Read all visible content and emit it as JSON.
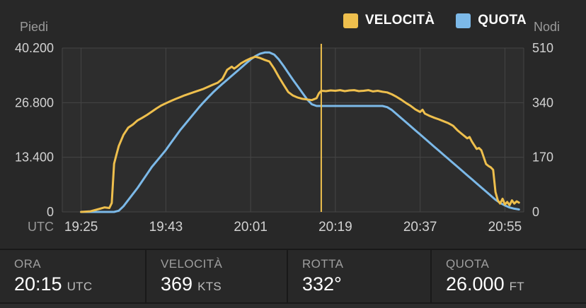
{
  "legend": {
    "items": [
      {
        "label": "VELOCITÀ",
        "color": "#eebf4d"
      },
      {
        "label": "QUOTA",
        "color": "#7cb9e8"
      }
    ]
  },
  "chart": {
    "left_axis": {
      "title": "Piedi",
      "max": 40200,
      "ticks": [
        40200,
        26800,
        13400,
        0
      ],
      "tick_labels": [
        "40.200",
        "26.800",
        "13.400",
        "0"
      ]
    },
    "right_axis": {
      "title": "Nodi",
      "max": 510,
      "ticks": [
        510,
        340,
        170,
        0
      ],
      "tick_labels": [
        "510",
        "340",
        "170",
        "0"
      ]
    },
    "x_axis": {
      "title": "UTC",
      "tick_labels": [
        "19:25",
        "19:43",
        "20:01",
        "20:19",
        "20:37",
        "20:55"
      ],
      "tick_minutes": [
        0,
        18,
        36,
        54,
        72,
        90
      ],
      "range_minutes": [
        -4,
        94
      ]
    },
    "cursor": {
      "minute": 51,
      "time": "20:15",
      "color": "#eebf4d"
    },
    "colors": {
      "grid": "#454545",
      "plot_bg": "#2d2d2d",
      "tick_text": "#d2d2d2",
      "axis_title_text": "#9a9a9a"
    }
  },
  "chart_data": {
    "type": "line",
    "title": "Flight altitude and speed profile",
    "x_unit": "minutes after 19:25 UTC",
    "x_tick_times": [
      "19:25",
      "19:43",
      "20:01",
      "20:19",
      "20:37",
      "20:55"
    ],
    "left_axis": {
      "label": "Piedi",
      "range": [
        0,
        40200
      ]
    },
    "right_axis": {
      "label": "Nodi",
      "range": [
        0,
        510
      ]
    },
    "cursor_readout": {
      "time_utc": "20:15",
      "speed_kts": 369,
      "track_deg": 332,
      "altitude_ft": 26000
    },
    "series": [
      {
        "name": "VELOCITÀ",
        "unit": "kts",
        "axis": "right",
        "color": "#eebf4d",
        "points": [
          [
            0,
            0
          ],
          [
            2,
            2
          ],
          [
            4,
            10
          ],
          [
            5,
            14
          ],
          [
            6,
            12
          ],
          [
            6.5,
            28
          ],
          [
            7,
            150
          ],
          [
            7.5,
            178
          ],
          [
            8,
            205
          ],
          [
            9,
            240
          ],
          [
            10,
            262
          ],
          [
            11,
            272
          ],
          [
            12,
            285
          ],
          [
            13,
            293
          ],
          [
            14,
            302
          ],
          [
            15,
            312
          ],
          [
            16,
            322
          ],
          [
            17,
            331
          ],
          [
            18,
            338
          ],
          [
            19,
            345
          ],
          [
            20,
            351
          ],
          [
            21,
            357
          ],
          [
            22,
            363
          ],
          [
            24,
            373
          ],
          [
            26,
            383
          ],
          [
            28,
            396
          ],
          [
            29,
            402
          ],
          [
            30,
            414
          ],
          [
            31,
            442
          ],
          [
            32,
            452
          ],
          [
            32.5,
            446
          ],
          [
            33,
            451
          ],
          [
            34,
            463
          ],
          [
            35,
            471
          ],
          [
            36,
            478
          ],
          [
            37,
            483
          ],
          [
            38,
            479
          ],
          [
            39,
            473
          ],
          [
            40,
            468
          ],
          [
            41,
            446
          ],
          [
            42,
            420
          ],
          [
            43,
            396
          ],
          [
            44,
            373
          ],
          [
            45,
            362
          ],
          [
            46,
            356
          ],
          [
            47,
            352
          ],
          [
            48,
            350
          ],
          [
            49,
            348
          ],
          [
            50,
            354
          ],
          [
            50.5,
            369
          ],
          [
            51,
            377
          ],
          [
            52,
            376
          ],
          [
            53,
            378
          ],
          [
            54,
            377
          ],
          [
            55,
            379
          ],
          [
            56,
            376
          ],
          [
            57,
            378
          ],
          [
            58,
            379
          ],
          [
            59,
            376
          ],
          [
            60,
            377
          ],
          [
            61,
            379
          ],
          [
            62,
            375
          ],
          [
            63,
            377
          ],
          [
            64,
            374
          ],
          [
            65,
            372
          ],
          [
            66,
            366
          ],
          [
            67,
            358
          ],
          [
            68,
            349
          ],
          [
            69,
            339
          ],
          [
            70,
            330
          ],
          [
            71,
            319
          ],
          [
            72,
            311
          ],
          [
            72.5,
            318
          ],
          [
            73,
            306
          ],
          [
            74,
            299
          ],
          [
            75,
            293
          ],
          [
            76,
            288
          ],
          [
            77,
            282
          ],
          [
            78,
            276
          ],
          [
            79,
            268
          ],
          [
            80,
            253
          ],
          [
            81,
            241
          ],
          [
            82,
            229
          ],
          [
            82.5,
            233
          ],
          [
            83,
            219
          ],
          [
            84,
            196
          ],
          [
            84.5,
            199
          ],
          [
            85,
            192
          ],
          [
            86,
            149
          ],
          [
            86.5,
            143
          ],
          [
            87,
            139
          ],
          [
            87.5,
            131
          ],
          [
            88,
            62
          ],
          [
            88.5,
            36
          ],
          [
            89,
            26
          ],
          [
            89.5,
            41
          ],
          [
            90,
            23
          ],
          [
            90.5,
            31
          ],
          [
            91,
            21
          ],
          [
            91.5,
            36
          ],
          [
            92,
            26
          ],
          [
            92.5,
            33
          ],
          [
            93,
            29
          ]
        ]
      },
      {
        "name": "QUOTA",
        "unit": "ft",
        "axis": "left",
        "color": "#7cb9e8",
        "points": [
          [
            0,
            0
          ],
          [
            7,
            0
          ],
          [
            8,
            300
          ],
          [
            9,
            1400
          ],
          [
            10,
            2900
          ],
          [
            11,
            4400
          ],
          [
            12,
            5900
          ],
          [
            13,
            7600
          ],
          [
            14,
            9300
          ],
          [
            15,
            11000
          ],
          [
            16,
            12400
          ],
          [
            17,
            13800
          ],
          [
            18,
            15200
          ],
          [
            19,
            16800
          ],
          [
            20,
            18400
          ],
          [
            21,
            20000
          ],
          [
            22,
            21400
          ],
          [
            23,
            22800
          ],
          [
            24,
            24200
          ],
          [
            25,
            25600
          ],
          [
            26,
            26900
          ],
          [
            27,
            28100
          ],
          [
            28,
            29300
          ],
          [
            29,
            30400
          ],
          [
            30,
            31400
          ],
          [
            31,
            32400
          ],
          [
            32,
            33400
          ],
          [
            33,
            34400
          ],
          [
            34,
            35400
          ],
          [
            35,
            36400
          ],
          [
            36,
            37400
          ],
          [
            37,
            38200
          ],
          [
            38,
            38800
          ],
          [
            39,
            39100
          ],
          [
            40,
            39100
          ],
          [
            41,
            38600
          ],
          [
            42,
            37400
          ],
          [
            43,
            35800
          ],
          [
            44,
            34100
          ],
          [
            45,
            32400
          ],
          [
            46,
            30800
          ],
          [
            47,
            29200
          ],
          [
            48,
            27600
          ],
          [
            49,
            26400
          ],
          [
            50,
            26000
          ],
          [
            56,
            26000
          ],
          [
            62,
            26000
          ],
          [
            64,
            26000
          ],
          [
            65,
            25700
          ],
          [
            66,
            25000
          ],
          [
            67,
            24000
          ],
          [
            68,
            23000
          ],
          [
            69,
            22000
          ],
          [
            70,
            21000
          ],
          [
            71,
            20000
          ],
          [
            72,
            19000
          ],
          [
            73,
            18000
          ],
          [
            74,
            17000
          ],
          [
            75,
            16000
          ],
          [
            76,
            15000
          ],
          [
            77,
            14000
          ],
          [
            78,
            13000
          ],
          [
            79,
            12000
          ],
          [
            80,
            11000
          ],
          [
            81,
            10000
          ],
          [
            82,
            9000
          ],
          [
            83,
            8000
          ],
          [
            84,
            7000
          ],
          [
            85,
            6000
          ],
          [
            86,
            5000
          ],
          [
            87,
            4000
          ],
          [
            88,
            3000
          ],
          [
            89,
            2200
          ],
          [
            90,
            1600
          ],
          [
            91,
            1100
          ],
          [
            92,
            800
          ],
          [
            93,
            600
          ]
        ]
      }
    ]
  },
  "info_bar": {
    "items": [
      {
        "label": "ORA",
        "value": "20:15",
        "unit": "UTC"
      },
      {
        "label": "VELOCITÀ",
        "value": "369",
        "unit": "KTS"
      },
      {
        "label": "ROTTA",
        "value": "332°",
        "unit": ""
      },
      {
        "label": "QUOTA",
        "value": "26.000",
        "unit": "FT"
      }
    ]
  }
}
